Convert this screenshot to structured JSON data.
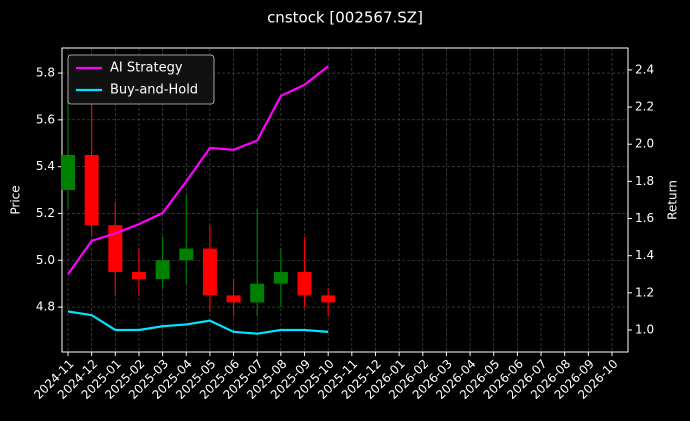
{
  "chart_data": {
    "type": "candlestick",
    "title": "cnstock [002567.SZ]",
    "y_label": "Price",
    "y2_label": "Return",
    "x": [
      "2024-11",
      "2024-12",
      "2025-01",
      "2025-02",
      "2025-03",
      "2025-04",
      "2025-05",
      "2025-06",
      "2025-07",
      "2025-08",
      "2025-09",
      "2025-10"
    ],
    "open": [
      5.3,
      5.45,
      5.15,
      4.95,
      4.92,
      5.0,
      5.05,
      4.85,
      4.82,
      4.9,
      4.95,
      4.85
    ],
    "high": [
      5.72,
      5.7,
      5.25,
      5.05,
      5.1,
      5.28,
      5.15,
      4.92,
      5.22,
      5.05,
      5.1,
      4.88
    ],
    "low": [
      5.22,
      5.1,
      4.85,
      4.85,
      4.88,
      4.9,
      4.78,
      4.76,
      4.76,
      4.8,
      4.8,
      4.76
    ],
    "close": [
      5.45,
      5.15,
      4.95,
      4.92,
      5.0,
      5.05,
      4.85,
      4.82,
      4.9,
      4.95,
      4.85,
      4.82
    ],
    "up_color": "#008000",
    "down_color": "#ff0000",
    "series": [
      {
        "name": "AI Strategy",
        "color": "#ff00ff",
        "axis": "y2",
        "values": [
          1.3,
          1.48,
          1.52,
          1.57,
          1.63,
          1.8,
          1.98,
          1.97,
          2.02,
          2.26,
          2.32,
          2.42
        ]
      },
      {
        "name": "Buy-and-Hold",
        "color": "#00e5ff",
        "axis": "y2",
        "values": [
          1.1,
          1.08,
          1.0,
          1.0,
          1.02,
          1.03,
          1.05,
          0.99,
          0.98,
          1.0,
          1.0,
          0.99
        ]
      }
    ],
    "xlim": [
      "2024-11",
      "2026-10"
    ],
    "xticks": [
      "2024-11",
      "2024-12",
      "2025-01",
      "2025-02",
      "2025-03",
      "2025-04",
      "2025-05",
      "2025-06",
      "2025-07",
      "2025-08",
      "2025-09",
      "2025-10",
      "2025-11",
      "2025-12",
      "2026-01",
      "2026-02",
      "2026-03",
      "2026-04",
      "2026-05",
      "2026-06",
      "2026-07",
      "2026-08",
      "2026-09",
      "2026-10"
    ],
    "ylim": [
      4.608,
      5.907
    ],
    "yticks": [
      4.8,
      {
        "value": 5,
        "label": "5.0"
      },
      5.2,
      5.4,
      5.6,
      5.8
    ],
    "y2lim": [
      0.8815,
      2.518
    ],
    "y2ticks": [
      {
        "value": 1,
        "label": "1.0"
      },
      1.2,
      1.4,
      1.6,
      1.8,
      {
        "value": 2,
        "label": "2.0"
      },
      2.2,
      2.4
    ],
    "grid": true,
    "legend": "upper left"
  }
}
